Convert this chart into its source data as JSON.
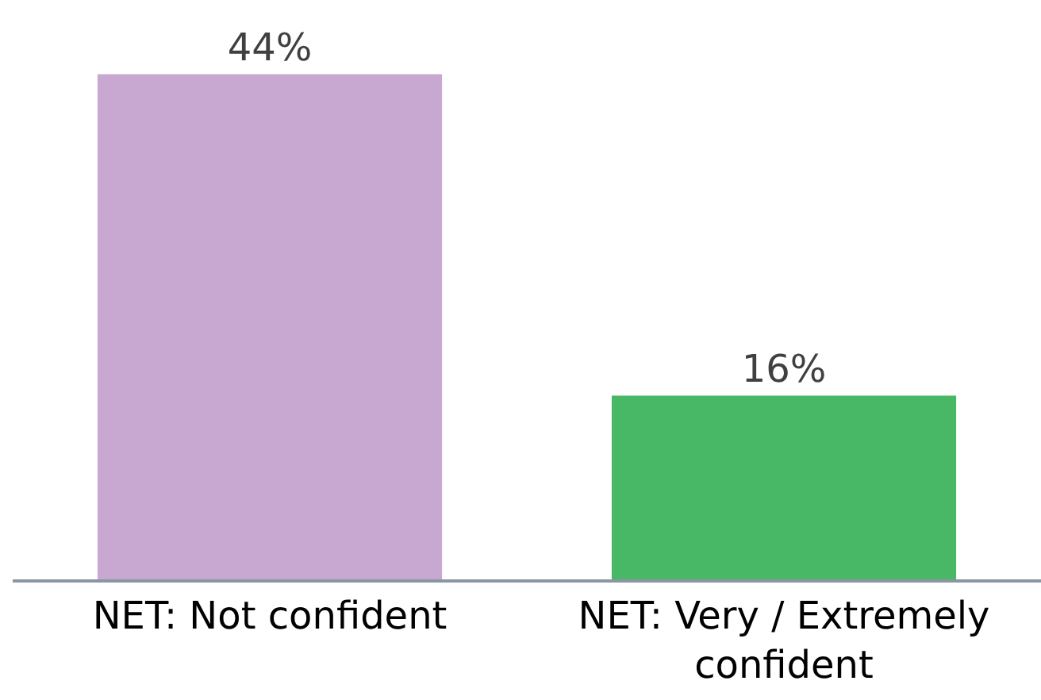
{
  "chart_data": {
    "type": "bar",
    "categories": [
      "NET: Not confident",
      "NET: Very / Extremely confident"
    ],
    "values": [
      44,
      16
    ],
    "value_labels": [
      "44%",
      "16%"
    ],
    "colors": [
      "#c8a8d0",
      "#49b866"
    ],
    "tick_labels": "x"
  }
}
